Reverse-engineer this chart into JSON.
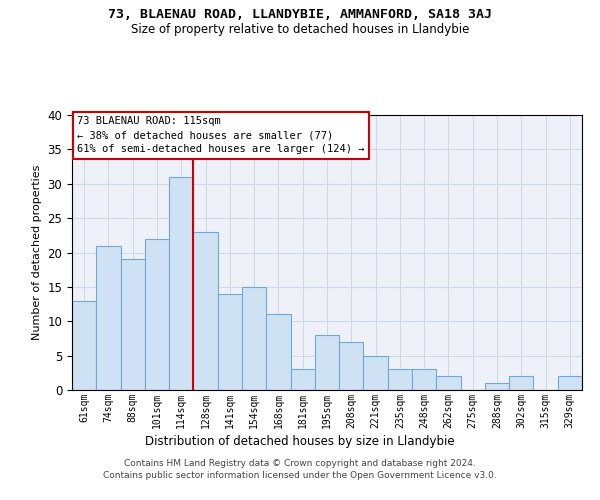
{
  "title1": "73, BLAENAU ROAD, LLANDYBIE, AMMANFORD, SA18 3AJ",
  "title2": "Size of property relative to detached houses in Llandybie",
  "xlabel": "Distribution of detached houses by size in Llandybie",
  "ylabel": "Number of detached properties",
  "categories": [
    "61sqm",
    "74sqm",
    "88sqm",
    "101sqm",
    "114sqm",
    "128sqm",
    "141sqm",
    "154sqm",
    "168sqm",
    "181sqm",
    "195sqm",
    "208sqm",
    "221sqm",
    "235sqm",
    "248sqm",
    "262sqm",
    "275sqm",
    "288sqm",
    "302sqm",
    "315sqm",
    "329sqm"
  ],
  "values": [
    13,
    21,
    19,
    22,
    31,
    23,
    14,
    15,
    11,
    3,
    8,
    7,
    5,
    3,
    3,
    2,
    0,
    1,
    2,
    0,
    2
  ],
  "bar_color": "#cfe2f3",
  "bar_edge_color": "#6fa8dc",
  "vline_x": 4.5,
  "property_line_label": "73 BLAENAU ROAD: 115sqm",
  "annotation_line1": "← 38% of detached houses are smaller (77)",
  "annotation_line2": "61% of semi-detached houses are larger (124) →",
  "annotation_box_color": "#ffffff",
  "annotation_box_edge_color": "#cc0000",
  "vline_color": "#cc0000",
  "grid_color": "#d0d8e8",
  "background_color": "#eef2f8",
  "ylim": [
    0,
    40
  ],
  "yticks": [
    0,
    5,
    10,
    15,
    20,
    25,
    30,
    35,
    40
  ],
  "footer1": "Contains HM Land Registry data © Crown copyright and database right 2024.",
  "footer2": "Contains public sector information licensed under the Open Government Licence v3.0."
}
